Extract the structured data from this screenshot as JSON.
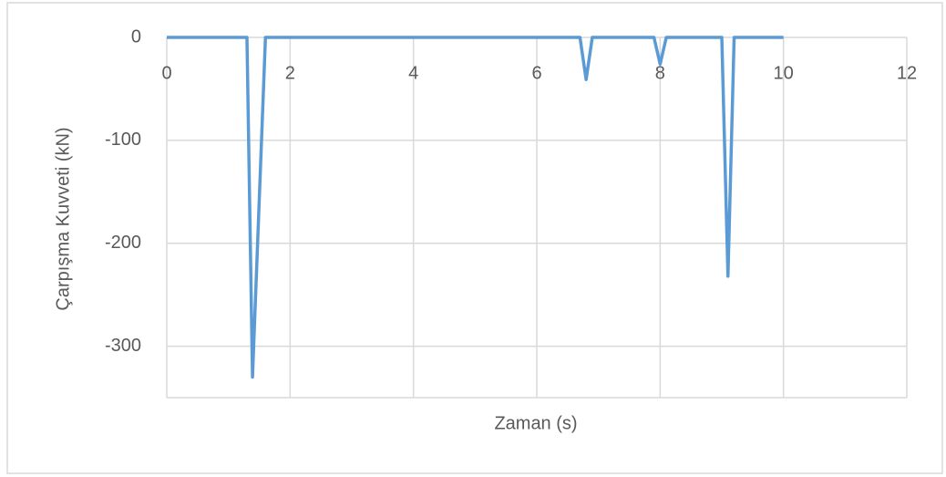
{
  "chart_data": {
    "type": "line",
    "x_label": "Zaman (s)",
    "y_label": "Çarpışma Kuvveti (kN)",
    "x": [
      0,
      1.3,
      1.39,
      1.6,
      6.7,
      6.8,
      6.9,
      7.9,
      8.0,
      8.1,
      9.0,
      9.1,
      9.2,
      10
    ],
    "series": [
      {
        "name": "Çarpışma Kuvveti",
        "color": "#5b9bd5",
        "values": [
          0,
          0,
          -330,
          0,
          0,
          -41,
          0,
          0,
          -26,
          0,
          0,
          -232,
          0,
          0
        ]
      }
    ],
    "xlim": [
      0,
      12
    ],
    "xticks": [
      0,
      2,
      4,
      6,
      8,
      10,
      12
    ],
    "ylim": [
      -350,
      0
    ],
    "yticks": [
      0,
      -100,
      -200,
      -300
    ],
    "grid": true
  }
}
